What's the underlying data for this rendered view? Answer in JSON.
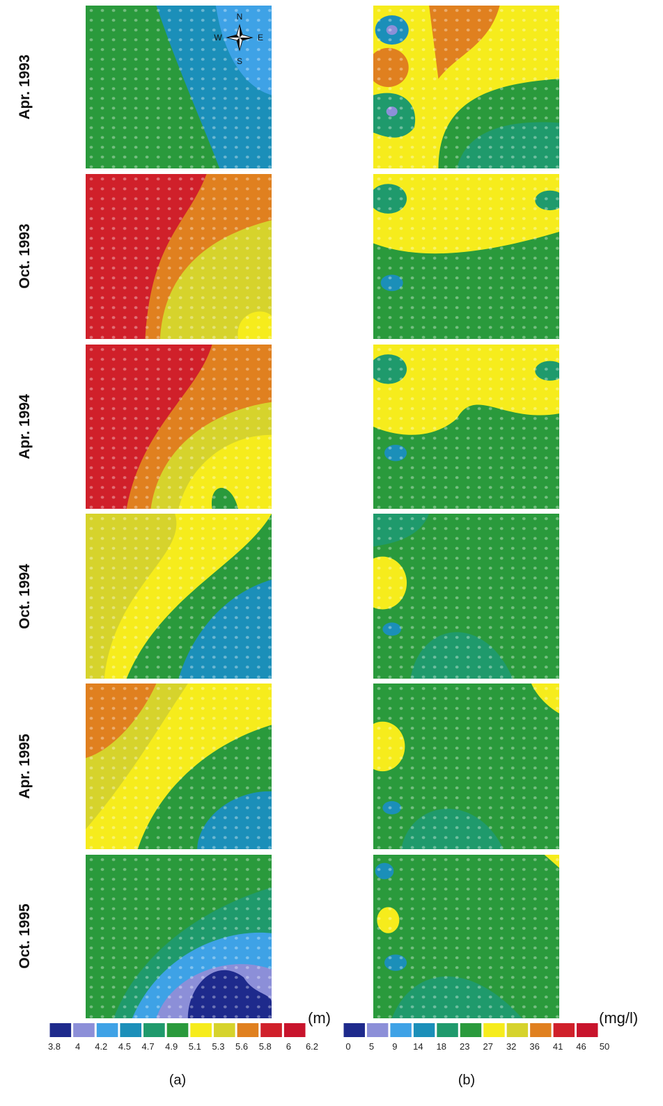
{
  "rows": [
    "Apr. 1993",
    "Oct. 1993",
    "Apr. 1994",
    "Oct. 1994",
    "Apr. 1995",
    "Oct. 1995"
  ],
  "compass": {
    "n": "N",
    "e": "E",
    "s": "S",
    "w": "W"
  },
  "panels": [
    {
      "label": "(a)",
      "legend": {
        "unit": "(m)",
        "ticks": [
          "3.8",
          "4",
          "4.2",
          "4.5",
          "4.7",
          "4.9",
          "5.1",
          "5.3",
          "5.6",
          "5.8",
          "6",
          "6.2"
        ],
        "colors": [
          "#1e2a8c",
          "#8c8fd8",
          "#3ea2e6",
          "#1b8fb9",
          "#1f9a6c",
          "#2a9a3c",
          "#f6ec1c",
          "#d6d32c",
          "#e0801f",
          "#d0202a",
          "#c8142c"
        ]
      }
    },
    {
      "label": "(b)",
      "legend": {
        "unit": "(mg/l)",
        "ticks": [
          "0",
          "5",
          "9",
          "14",
          "18",
          "23",
          "27",
          "32",
          "36",
          "41",
          "46",
          "50"
        ],
        "colors": [
          "#1e2a8c",
          "#8c8fd8",
          "#3ea2e6",
          "#1b8fb9",
          "#1f9a6c",
          "#2a9a3c",
          "#f6ec1c",
          "#d6d32c",
          "#e0801f",
          "#d0202a",
          "#c8142c"
        ]
      }
    }
  ]
}
